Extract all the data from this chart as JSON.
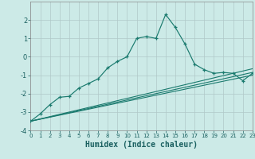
{
  "xlabel": "Humidex (Indice chaleur)",
  "bg_color": "#cceae7",
  "grid_color": "#b0c8c8",
  "line_color": "#1a7a6e",
  "xlim": [
    0,
    23
  ],
  "ylim": [
    -4,
    3
  ],
  "xticks": [
    0,
    1,
    2,
    3,
    4,
    5,
    6,
    7,
    8,
    9,
    10,
    11,
    12,
    13,
    14,
    15,
    16,
    17,
    18,
    19,
    20,
    21,
    22,
    23
  ],
  "yticks": [
    -4,
    -3,
    -2,
    -1,
    0,
    1,
    2
  ],
  "main_line_x": [
    0,
    1,
    2,
    3,
    4,
    5,
    6,
    7,
    8,
    9,
    10,
    11,
    12,
    13,
    14,
    15,
    16,
    17,
    18,
    19,
    20,
    21,
    22,
    23
  ],
  "main_line_y": [
    -3.5,
    -3.1,
    -2.6,
    -2.2,
    -2.15,
    -1.7,
    -1.45,
    -1.2,
    -0.6,
    -0.25,
    0.0,
    1.0,
    1.1,
    1.0,
    2.3,
    1.6,
    0.7,
    -0.4,
    -0.7,
    -0.9,
    -0.85,
    -0.9,
    -1.3,
    -0.9
  ],
  "straight_lines": [
    {
      "x": [
        0,
        23
      ],
      "y": [
        -3.5,
        -1.0
      ]
    },
    {
      "x": [
        0,
        23
      ],
      "y": [
        -3.5,
        -0.85
      ]
    },
    {
      "x": [
        0,
        23
      ],
      "y": [
        -3.5,
        -0.65
      ]
    }
  ]
}
